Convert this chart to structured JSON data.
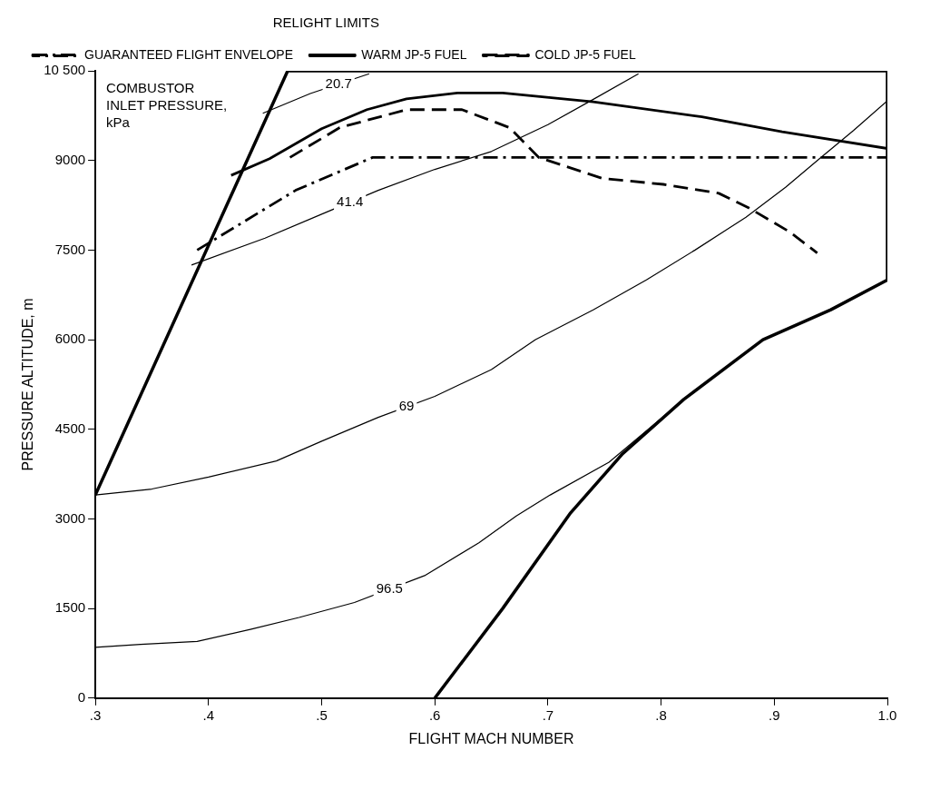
{
  "chart_data": {
    "type": "line",
    "xlabel": "FLIGHT MACH NUMBER",
    "ylabel": "PRESSURE ALTITUDE, m",
    "legend_title": "RELIGHT LIMITS",
    "xlim": [
      0.3,
      1.0
    ],
    "xticks": [
      {
        "value": 0.3,
        "label": ".3"
      },
      {
        "value": 0.4,
        "label": ".4"
      },
      {
        "value": 0.5,
        "label": ".5"
      },
      {
        "value": 0.6,
        "label": ".6"
      },
      {
        "value": 0.7,
        "label": ".7"
      },
      {
        "value": 0.8,
        "label": ".8"
      },
      {
        "value": 0.9,
        "label": ".9"
      },
      {
        "value": 1.0,
        "label": "1.0"
      }
    ],
    "ylim": [
      0,
      10500
    ],
    "yticks": [
      0,
      1500,
      3000,
      4500,
      6000,
      7500,
      9000,
      {
        "value": 10500,
        "label": "10 500"
      }
    ],
    "grid": false,
    "legend": "top",
    "marker": "none",
    "series": [
      {
        "color": "#000000",
        "line_style": "solid",
        "x": [
          0.3,
          0.47,
          1.0,
          1.0,
          0.95,
          0.89,
          0.82,
          0.766,
          0.72,
          0.66,
          0.6
        ],
        "values": [
          3400,
          10500,
          10500,
          7000,
          6500,
          6000,
          5000,
          4090,
          3100,
          1500,
          0
        ]
      },
      {
        "name": "GUARANTEED FLIGHT ENVELOPE",
        "color": "#000000",
        "line_style": "dashdot",
        "x": [
          0.39,
          0.477,
          0.545,
          1.0
        ],
        "values": [
          7500,
          8500,
          9050,
          9050
        ]
      },
      {
        "name": "WARM JP-5 FUEL",
        "color": "#000000",
        "line_style": "solid",
        "x": [
          0.42,
          0.454,
          0.5,
          0.54,
          0.575,
          0.62,
          0.66,
          0.74,
          0.836,
          0.907,
          1.0
        ],
        "values": [
          8750,
          9030,
          9530,
          9850,
          10030,
          10130,
          10130,
          9980,
          9730,
          9480,
          9200
        ]
      },
      {
        "name": "COLD JP-5 FUEL",
        "color": "#000000",
        "line_style": "dashed",
        "x": [
          0.472,
          0.516,
          0.575,
          0.624,
          0.666,
          0.692,
          0.748,
          0.802,
          0.851,
          0.878,
          0.914,
          0.938
        ],
        "values": [
          9050,
          9550,
          9850,
          9850,
          9550,
          9050,
          8700,
          8600,
          8450,
          8200,
          7800,
          7450
        ]
      },
      {
        "color": "#000000",
        "line_style": "solid",
        "x": [
          0.448,
          0.49,
          0.542
        ],
        "values": [
          9790,
          10120,
          10450
        ]
      },
      {
        "color": "#000000",
        "line_style": "solid",
        "x": [
          0.385,
          0.45,
          0.5,
          0.55,
          0.6,
          0.65,
          0.7,
          0.738,
          0.78
        ],
        "values": [
          7250,
          7700,
          8100,
          8500,
          8850,
          9150,
          9600,
          10000,
          10450
        ]
      },
      {
        "color": "#000000",
        "line_style": "solid",
        "x": [
          0.3,
          0.35,
          0.4,
          0.46,
          0.5,
          0.55,
          0.6,
          0.65,
          0.689,
          0.74,
          0.787,
          0.83,
          0.875,
          0.91,
          0.94,
          0.97,
          1.0
        ],
        "values": [
          3400,
          3500,
          3700,
          3970,
          4300,
          4700,
          5050,
          5500,
          6000,
          6500,
          7000,
          7500,
          8050,
          8550,
          9030,
          9500,
          10000
        ]
      },
      {
        "color": "#000000",
        "line_style": "solid",
        "x": [
          0.3,
          0.34,
          0.39,
          0.437,
          0.48,
          0.529,
          0.591,
          0.639,
          0.672,
          0.702,
          0.754,
          0.82
        ],
        "values": [
          850,
          900,
          950,
          1150,
          1350,
          1600,
          2050,
          2600,
          3050,
          3400,
          3950,
          5000
        ]
      }
    ],
    "annotations": [
      "COMBUSTOR INLET PRESSURE, kPa",
      {
        "text": "20.7",
        "x": 0.515,
        "y": 10280
      },
      {
        "text": "41.4",
        "x": 0.525,
        "y": 8300
      },
      {
        "text": "69",
        "x": 0.575,
        "y": 4880
      },
      {
        "text": "96.5",
        "x": 0.56,
        "y": 1830
      }
    ]
  }
}
